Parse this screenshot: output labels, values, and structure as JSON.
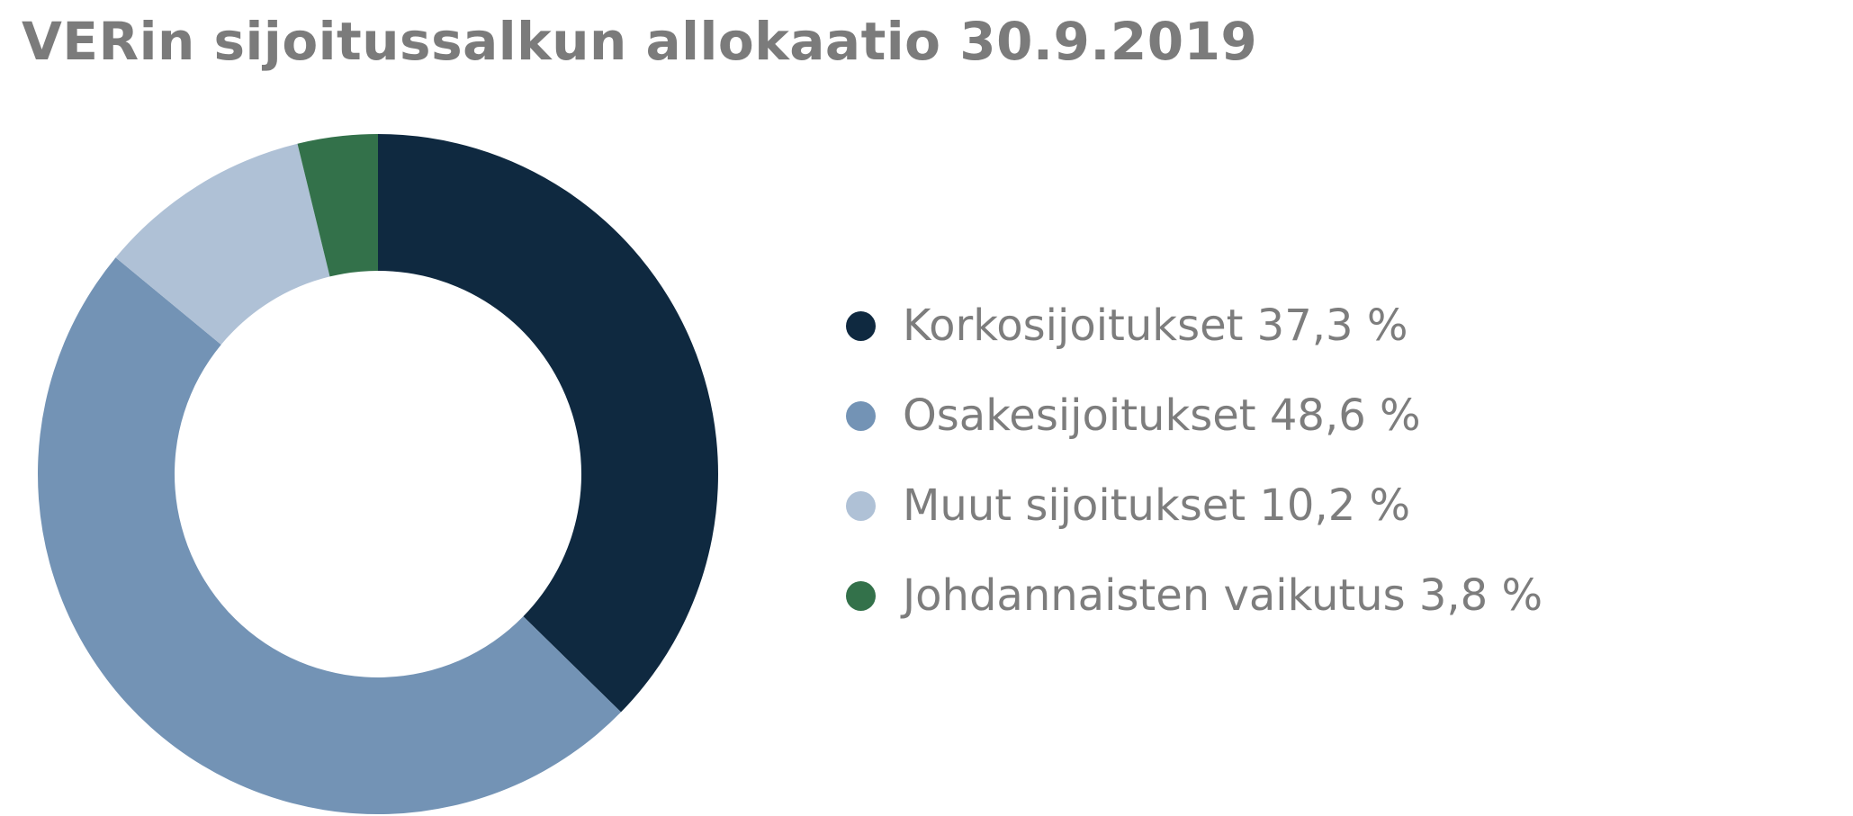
{
  "title": "VERin sijoitussalkun allokaatio 30.9.2019",
  "chart_data": {
    "type": "pie",
    "title": "VERin sijoitussalkun allokaatio 30.9.2019",
    "donut": true,
    "legend_position": "right",
    "slices": [
      {
        "name": "Korkosijoitukset",
        "value": 37.3,
        "label": "Korkosijoitukset 37,3 %",
        "color": "#0f2940"
      },
      {
        "name": "Osakesijoitukset",
        "value": 48.6,
        "label": "Osakesijoitukset 48,6 %",
        "color": "#7393b5"
      },
      {
        "name": "Muut sijoitukset",
        "value": 10.2,
        "label": "Muut sijoitukset 10,2 %",
        "color": "#afc1d6"
      },
      {
        "name": "Johdannaisten vaikutus",
        "value": 3.8,
        "label": "Johdannaisten vaikutus 3,8 %",
        "color": "#33714a"
      }
    ]
  }
}
